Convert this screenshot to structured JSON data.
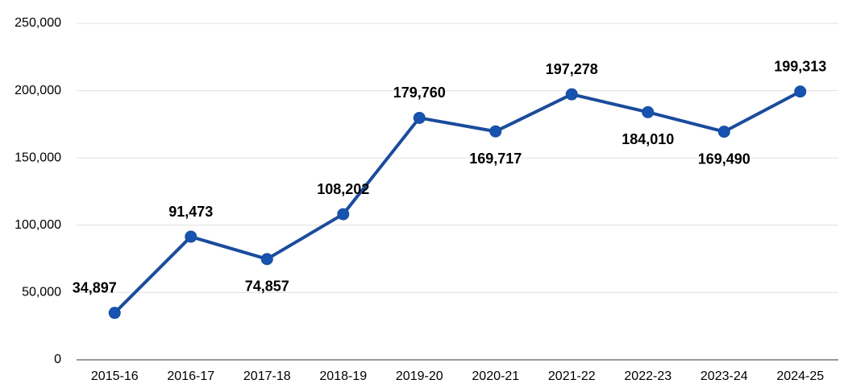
{
  "chart_data": {
    "type": "line",
    "categories": [
      "2015-16",
      "2016-17",
      "2017-18",
      "2018-19",
      "2019-20",
      "2020-21",
      "2021-22",
      "2022-23",
      "2023-24",
      "2024-25"
    ],
    "series": [
      {
        "color": "#1a4c9c",
        "values": [
          34897,
          91473,
          74857,
          108202,
          179760,
          169717,
          197278,
          184010,
          169490,
          199313
        ],
        "value_labels": [
          "34,897",
          "91,473",
          "74,857",
          "108,202",
          "179,760",
          "169,717",
          "197,278",
          "184,010",
          "169,490",
          "199,313"
        ]
      }
    ],
    "ylim": [
      0,
      250000
    ],
    "yticks": [
      0,
      {
        "value": 50000,
        "label": "50,000"
      },
      {
        "value": 100000,
        "label": "100,000"
      },
      {
        "value": 150000,
        "label": "150,000"
      },
      {
        "value": 200000,
        "label": "200,000"
      },
      {
        "value": 250000,
        "label": "250,000"
      }
    ],
    "grid": true
  }
}
